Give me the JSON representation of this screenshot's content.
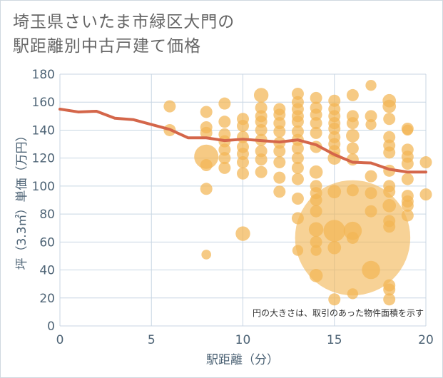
{
  "title_lines": [
    "埼玉県さいたま市緑区大門の",
    "駅距離別中古戸建て価格"
  ],
  "chart_data": {
    "type": "scatter",
    "xlabel": "駅距離（分）",
    "ylabel": "坪（3.3㎡）単価（万円）",
    "xlim": [
      0,
      20
    ],
    "ylim": [
      0,
      180
    ],
    "x_ticks": [
      "0",
      "5",
      "10",
      "15",
      "20"
    ],
    "y_ticks": [
      "0",
      "20",
      "40",
      "60",
      "80",
      "100",
      "120",
      "140",
      "160",
      "180"
    ],
    "grid": true,
    "annotation": "円の大きさは、取引のあった物件面積を示す",
    "colors": {
      "bubble": "#f2b655",
      "line": "#d4664a",
      "grid": "#c8d6e3",
      "axis_text": "#4d6375"
    },
    "line_series": {
      "x": [
        0,
        1,
        2,
        3,
        4,
        5,
        6,
        7,
        8,
        9,
        10,
        11,
        12,
        13,
        14,
        15,
        16,
        17,
        18,
        19,
        20
      ],
      "y": [
        155,
        153,
        153.5,
        148.5,
        147.5,
        144,
        140.5,
        134.5,
        134.5,
        132.5,
        133.5,
        132.5,
        131.5,
        133,
        129.5,
        122.5,
        117,
        116.5,
        112,
        110,
        110
      ]
    },
    "points": [
      {
        "x": 6,
        "y": 157,
        "s": 1
      },
      {
        "x": 6,
        "y": 140,
        "s": 1
      },
      {
        "x": 8,
        "y": 153,
        "s": 1
      },
      {
        "x": 8,
        "y": 142,
        "s": 1
      },
      {
        "x": 8,
        "y": 138,
        "s": 1
      },
      {
        "x": 8,
        "y": 121,
        "s": 2
      },
      {
        "x": 8,
        "y": 115,
        "s": 1
      },
      {
        "x": 8,
        "y": 98,
        "s": 1
      },
      {
        "x": 8,
        "y": 51,
        "s": 0.8
      },
      {
        "x": 9,
        "y": 159,
        "s": 1
      },
      {
        "x": 9,
        "y": 146,
        "s": 1
      },
      {
        "x": 9,
        "y": 137,
        "s": 1
      },
      {
        "x": 9,
        "y": 132,
        "s": 1
      },
      {
        "x": 9,
        "y": 126,
        "s": 1
      },
      {
        "x": 9,
        "y": 120,
        "s": 1
      },
      {
        "x": 9,
        "y": 113,
        "s": 1
      },
      {
        "x": 10,
        "y": 148,
        "s": 1
      },
      {
        "x": 10,
        "y": 143,
        "s": 1
      },
      {
        "x": 10,
        "y": 135,
        "s": 1
      },
      {
        "x": 10,
        "y": 128,
        "s": 1
      },
      {
        "x": 10,
        "y": 123,
        "s": 1
      },
      {
        "x": 10,
        "y": 117,
        "s": 1
      },
      {
        "x": 10,
        "y": 109,
        "s": 1
      },
      {
        "x": 10,
        "y": 66,
        "s": 1.2
      },
      {
        "x": 11,
        "y": 165,
        "s": 1.2
      },
      {
        "x": 11,
        "y": 156,
        "s": 1
      },
      {
        "x": 11,
        "y": 150,
        "s": 1
      },
      {
        "x": 11,
        "y": 146,
        "s": 1
      },
      {
        "x": 11,
        "y": 140,
        "s": 1
      },
      {
        "x": 11,
        "y": 133,
        "s": 1
      },
      {
        "x": 11,
        "y": 125,
        "s": 1
      },
      {
        "x": 11,
        "y": 119,
        "s": 1
      },
      {
        "x": 11,
        "y": 110,
        "s": 1
      },
      {
        "x": 12,
        "y": 155,
        "s": 1
      },
      {
        "x": 12,
        "y": 151,
        "s": 1
      },
      {
        "x": 12,
        "y": 145,
        "s": 1
      },
      {
        "x": 12,
        "y": 139,
        "s": 1
      },
      {
        "x": 12,
        "y": 131,
        "s": 1
      },
      {
        "x": 12,
        "y": 125,
        "s": 1
      },
      {
        "x": 12,
        "y": 117,
        "s": 1
      },
      {
        "x": 12,
        "y": 106,
        "s": 1
      },
      {
        "x": 12,
        "y": 96,
        "s": 1
      },
      {
        "x": 13,
        "y": 166,
        "s": 1
      },
      {
        "x": 13,
        "y": 160,
        "s": 1
      },
      {
        "x": 13,
        "y": 155,
        "s": 1
      },
      {
        "x": 13,
        "y": 150,
        "s": 1
      },
      {
        "x": 13,
        "y": 146,
        "s": 1
      },
      {
        "x": 13,
        "y": 139,
        "s": 1
      },
      {
        "x": 13,
        "y": 133,
        "s": 1
      },
      {
        "x": 13,
        "y": 127,
        "s": 1
      },
      {
        "x": 13,
        "y": 120,
        "s": 1
      },
      {
        "x": 13,
        "y": 113,
        "s": 1
      },
      {
        "x": 13,
        "y": 105,
        "s": 1
      },
      {
        "x": 13,
        "y": 91,
        "s": 1
      },
      {
        "x": 13,
        "y": 77,
        "s": 1
      },
      {
        "x": 13,
        "y": 54,
        "s": 0.9
      },
      {
        "x": 14,
        "y": 163,
        "s": 1
      },
      {
        "x": 14,
        "y": 156,
        "s": 1
      },
      {
        "x": 14,
        "y": 151,
        "s": 1
      },
      {
        "x": 14,
        "y": 145,
        "s": 1
      },
      {
        "x": 14,
        "y": 138,
        "s": 1
      },
      {
        "x": 14,
        "y": 128,
        "s": 1
      },
      {
        "x": 14,
        "y": 110,
        "s": 1.1
      },
      {
        "x": 14,
        "y": 100,
        "s": 1
      },
      {
        "x": 14,
        "y": 95,
        "s": 1
      },
      {
        "x": 14,
        "y": 90,
        "s": 1
      },
      {
        "x": 14,
        "y": 82,
        "s": 1
      },
      {
        "x": 14,
        "y": 69,
        "s": 1.2
      },
      {
        "x": 14,
        "y": 60,
        "s": 1
      },
      {
        "x": 14,
        "y": 54,
        "s": 0.9
      },
      {
        "x": 14,
        "y": 36,
        "s": 1.1
      },
      {
        "x": 15,
        "y": 161,
        "s": 1
      },
      {
        "x": 15,
        "y": 155,
        "s": 1
      },
      {
        "x": 15,
        "y": 150,
        "s": 1
      },
      {
        "x": 15,
        "y": 145,
        "s": 1
      },
      {
        "x": 15,
        "y": 141,
        "s": 1
      },
      {
        "x": 15,
        "y": 135,
        "s": 1
      },
      {
        "x": 15,
        "y": 130,
        "s": 1
      },
      {
        "x": 15,
        "y": 125,
        "s": 1
      },
      {
        "x": 15,
        "y": 120,
        "s": 1.1
      },
      {
        "x": 15,
        "y": 96,
        "s": 1.1
      },
      {
        "x": 15,
        "y": 68,
        "s": 1.8
      },
      {
        "x": 15,
        "y": 56,
        "s": 1.1
      },
      {
        "x": 15,
        "y": 19,
        "s": 1
      },
      {
        "x": 16,
        "y": 165,
        "s": 1
      },
      {
        "x": 16,
        "y": 150,
        "s": 1
      },
      {
        "x": 16,
        "y": 145,
        "s": 1
      },
      {
        "x": 16,
        "y": 136,
        "s": 1.1
      },
      {
        "x": 16,
        "y": 127,
        "s": 1
      },
      {
        "x": 16,
        "y": 119,
        "s": 1
      },
      {
        "x": 16,
        "y": 97,
        "s": 1
      },
      {
        "x": 16,
        "y": 68,
        "s": 1.5
      },
      {
        "x": 16,
        "y": 63,
        "s": 1
      },
      {
        "x": 16,
        "y": 63,
        "s": 9.5
      },
      {
        "x": 16,
        "y": 23,
        "s": 0.9
      },
      {
        "x": 17,
        "y": 172,
        "s": 0.9
      },
      {
        "x": 17,
        "y": 150,
        "s": 1
      },
      {
        "x": 17,
        "y": 144,
        "s": 0.9
      },
      {
        "x": 17,
        "y": 107,
        "s": 1
      },
      {
        "x": 17,
        "y": 95,
        "s": 1
      },
      {
        "x": 17,
        "y": 82,
        "s": 1
      },
      {
        "x": 17,
        "y": 40,
        "s": 1.5
      },
      {
        "x": 18,
        "y": 161,
        "s": 1.1
      },
      {
        "x": 18,
        "y": 157,
        "s": 1.1
      },
      {
        "x": 18,
        "y": 148,
        "s": 1
      },
      {
        "x": 18,
        "y": 135,
        "s": 1
      },
      {
        "x": 18,
        "y": 129,
        "s": 1
      },
      {
        "x": 18,
        "y": 124,
        "s": 1
      },
      {
        "x": 18,
        "y": 111,
        "s": 1
      },
      {
        "x": 18,
        "y": 100,
        "s": 1
      },
      {
        "x": 18,
        "y": 96,
        "s": 1
      },
      {
        "x": 18,
        "y": 86,
        "s": 1.1
      },
      {
        "x": 18,
        "y": 75,
        "s": 1
      },
      {
        "x": 18,
        "y": 71,
        "s": 1
      },
      {
        "x": 18,
        "y": 29,
        "s": 1
      },
      {
        "x": 18,
        "y": 26,
        "s": 1
      },
      {
        "x": 18,
        "y": 19,
        "s": 1
      },
      {
        "x": 19,
        "y": 141,
        "s": 1
      },
      {
        "x": 19,
        "y": 140,
        "s": 0.9
      },
      {
        "x": 19,
        "y": 126,
        "s": 1
      },
      {
        "x": 19,
        "y": 121,
        "s": 1
      },
      {
        "x": 19,
        "y": 116,
        "s": 1
      },
      {
        "x": 19,
        "y": 105,
        "s": 1
      },
      {
        "x": 19,
        "y": 93,
        "s": 1
      },
      {
        "x": 19,
        "y": 89,
        "s": 1
      },
      {
        "x": 19,
        "y": 86,
        "s": 1
      },
      {
        "x": 19,
        "y": 79,
        "s": 1
      },
      {
        "x": 20,
        "y": 117,
        "s": 1
      },
      {
        "x": 20,
        "y": 94,
        "s": 1
      }
    ]
  }
}
